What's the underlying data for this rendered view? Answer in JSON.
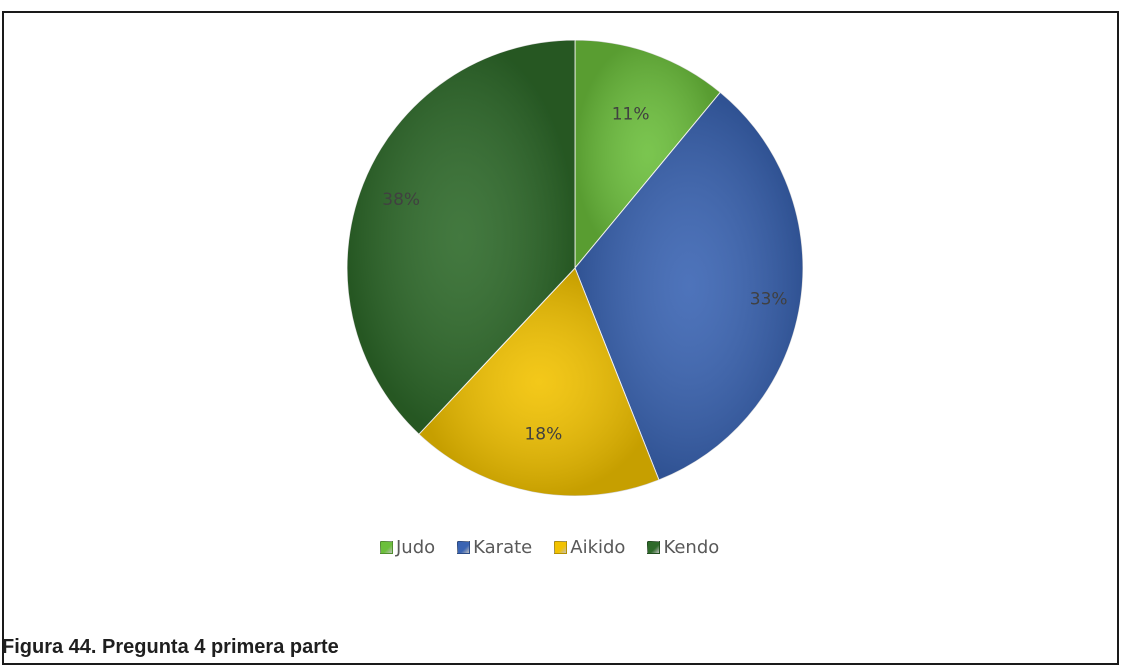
{
  "caption": "Figura 44. Pregunta 4 primera parte",
  "chart_data": {
    "type": "pie",
    "categories": [
      "Judo",
      "Karate",
      "Aikido",
      "Kendo"
    ],
    "values": [
      11,
      33,
      18,
      38
    ],
    "data_labels": [
      "11%",
      "33%",
      "18%",
      "38%"
    ],
    "colors": [
      "#6cbf3c",
      "#3a64b3",
      "#f2c200",
      "#2e6a2a"
    ],
    "legend_position": "bottom",
    "start_angle": "12 o'clock, clockwise"
  }
}
